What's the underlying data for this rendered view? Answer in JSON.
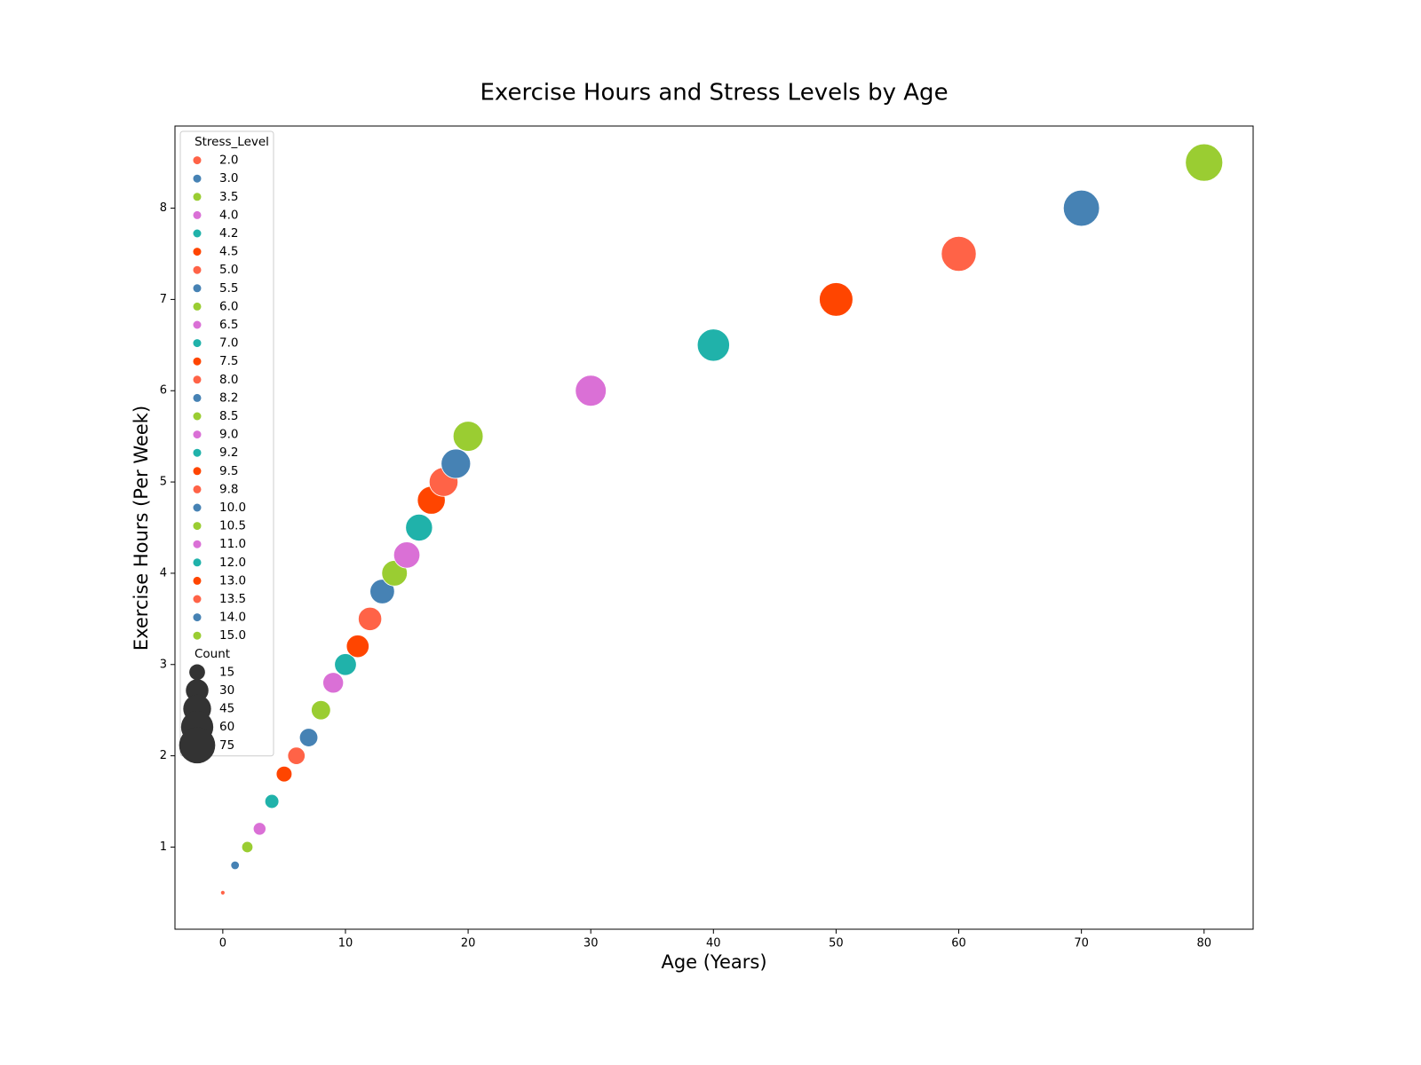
{
  "chart_data": {
    "type": "scatter",
    "title": "Exercise Hours and Stress Levels by Age",
    "x_label": "Age (Years)",
    "y_label": "Exercise Hours (Per Week)",
    "x": [
      0,
      1,
      2,
      3,
      4,
      5,
      6,
      7,
      8,
      9,
      10,
      11,
      12,
      13,
      14,
      15,
      16,
      17,
      18,
      19,
      20,
      30,
      40,
      50,
      60,
      70,
      80
    ],
    "y": [
      0.5,
      0.8,
      1.0,
      1.2,
      1.5,
      1.8,
      2.0,
      2.2,
      2.5,
      2.8,
      3.0,
      3.2,
      3.5,
      3.8,
      4.0,
      4.2,
      4.5,
      4.8,
      5.0,
      5.2,
      5.5,
      6.0,
      6.5,
      7.0,
      7.5,
      8.0,
      8.5
    ],
    "sizes": [
      2,
      5,
      8,
      10,
      12,
      15,
      18,
      20,
      22,
      25,
      28,
      30,
      32,
      35,
      38,
      40,
      42,
      45,
      48,
      50,
      52,
      55,
      60,
      65,
      70,
      75,
      80
    ],
    "stress": [
      2.0,
      3.0,
      3.5,
      4.0,
      4.2,
      4.5,
      5.0,
      5.5,
      6.0,
      6.5,
      7.0,
      7.5,
      8.0,
      8.2,
      8.5,
      9.0,
      9.2,
      9.5,
      9.8,
      10.0,
      10.5,
      11.0,
      12.0,
      13.0,
      13.5,
      14.0,
      15.0
    ],
    "stress_labels": [
      "2.0",
      "3.0",
      "3.5",
      "4.0",
      "4.2",
      "4.5",
      "5.0",
      "5.5",
      "6.0",
      "6.5",
      "7.0",
      "7.5",
      "8.0",
      "8.2",
      "8.5",
      "9.0",
      "9.2",
      "9.5",
      "9.8",
      "10.0",
      "10.5",
      "11.0",
      "12.0",
      "13.0",
      "13.5",
      "14.0",
      "15.0"
    ],
    "colors": [
      "#ff6347",
      "#4682b4",
      "#9acd32",
      "#da70d6",
      "#20b2aa",
      "#ff4500",
      "#ff6347",
      "#4682b4",
      "#9acd32",
      "#da70d6",
      "#20b2aa",
      "#ff4500",
      "#ff6347",
      "#4682b4",
      "#9acd32",
      "#da70d6",
      "#20b2aa",
      "#ff4500",
      "#ff6347",
      "#4682b4",
      "#9acd32",
      "#da70d6",
      "#20b2aa",
      "#ff4500",
      "#ff6347",
      "#4682b4",
      "#9acd32"
    ],
    "hue_title": "Stress_Level",
    "size_title": "Count",
    "size_legend": [
      15,
      30,
      45,
      60,
      75
    ],
    "xlim": [
      -3.9,
      84
    ],
    "ylim": [
      0.1,
      8.9
    ],
    "xticks": [
      0,
      10,
      20,
      30,
      40,
      50,
      60,
      70,
      80
    ],
    "yticks": [
      1,
      2,
      3,
      4,
      5,
      6,
      7,
      8
    ],
    "legend_position": "upper left"
  }
}
